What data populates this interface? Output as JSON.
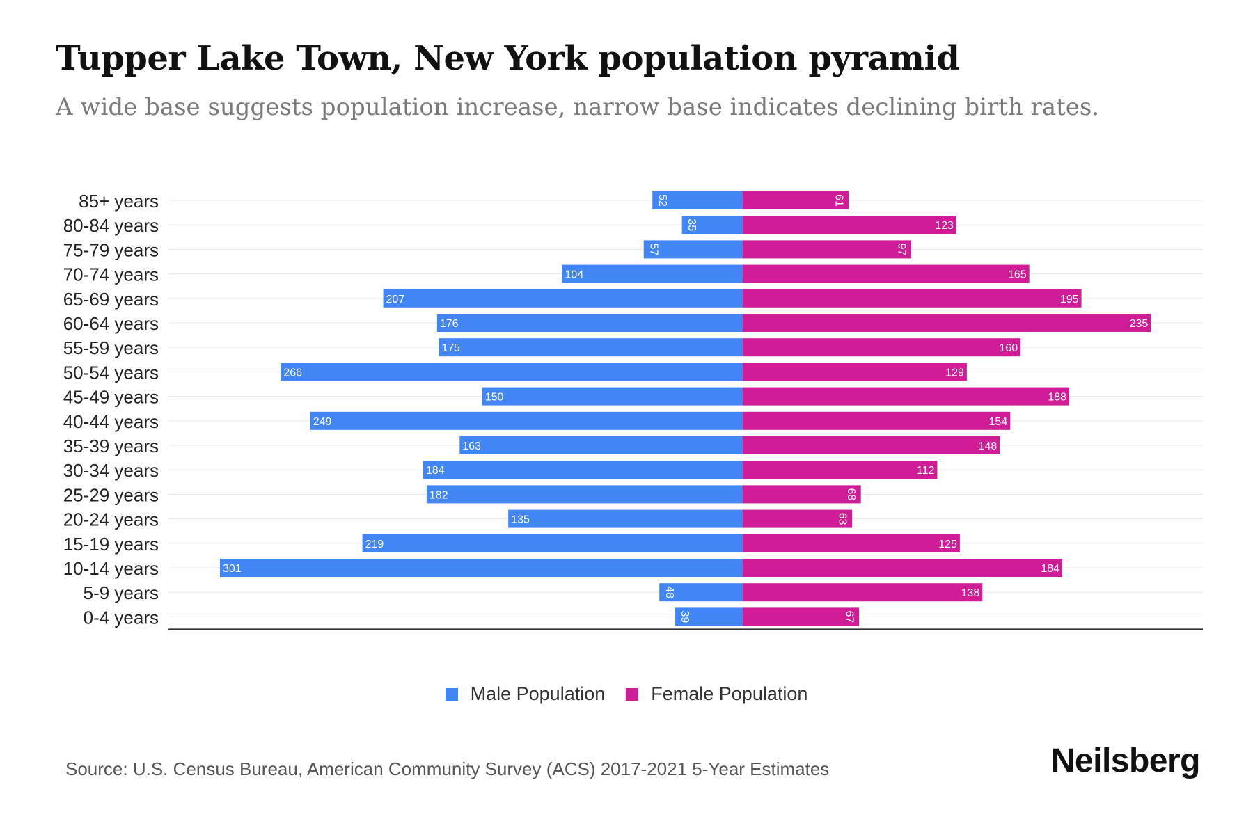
{
  "title": "Tupper Lake Town, New York population pyramid",
  "subtitle": "A wide base suggests population increase, narrow base indicates declining birth rates.",
  "source": "Source: U.S. Census Bureau, American Community Survey (ACS) 2017-2021 5-Year Estimates",
  "brand": "Neilsberg",
  "colors": {
    "male": "#4285F4",
    "female": "#D01C96",
    "axis": "#333333",
    "grid": "#e8e8e8",
    "label": "#222222"
  },
  "legend": {
    "male": "Male Population",
    "female": "Female Population"
  },
  "chart_data": {
    "type": "bar",
    "orientation": "horizontal-pyramid",
    "categories": [
      "85+ years",
      "80-84 years",
      "75-79 years",
      "70-74 years",
      "65-69 years",
      "60-64 years",
      "55-59 years",
      "50-54 years",
      "45-49 years",
      "40-44 years",
      "35-39 years",
      "30-34 years",
      "25-29 years",
      "20-24 years",
      "15-19 years",
      "10-14 years",
      "5-9 years",
      "0-4 years"
    ],
    "series": [
      {
        "name": "Male Population",
        "values": [
          52,
          35,
          57,
          104,
          207,
          176,
          175,
          266,
          150,
          249,
          163,
          184,
          182,
          135,
          219,
          301,
          48,
          39
        ]
      },
      {
        "name": "Female Population",
        "values": [
          61,
          123,
          97,
          165,
          195,
          235,
          160,
          129,
          188,
          154,
          148,
          112,
          68,
          63,
          125,
          184,
          138,
          67
        ]
      }
    ],
    "xlim": [
      -332,
      332
    ],
    "grid": true,
    "legend_position": "bottom-center",
    "data_labels": true
  }
}
